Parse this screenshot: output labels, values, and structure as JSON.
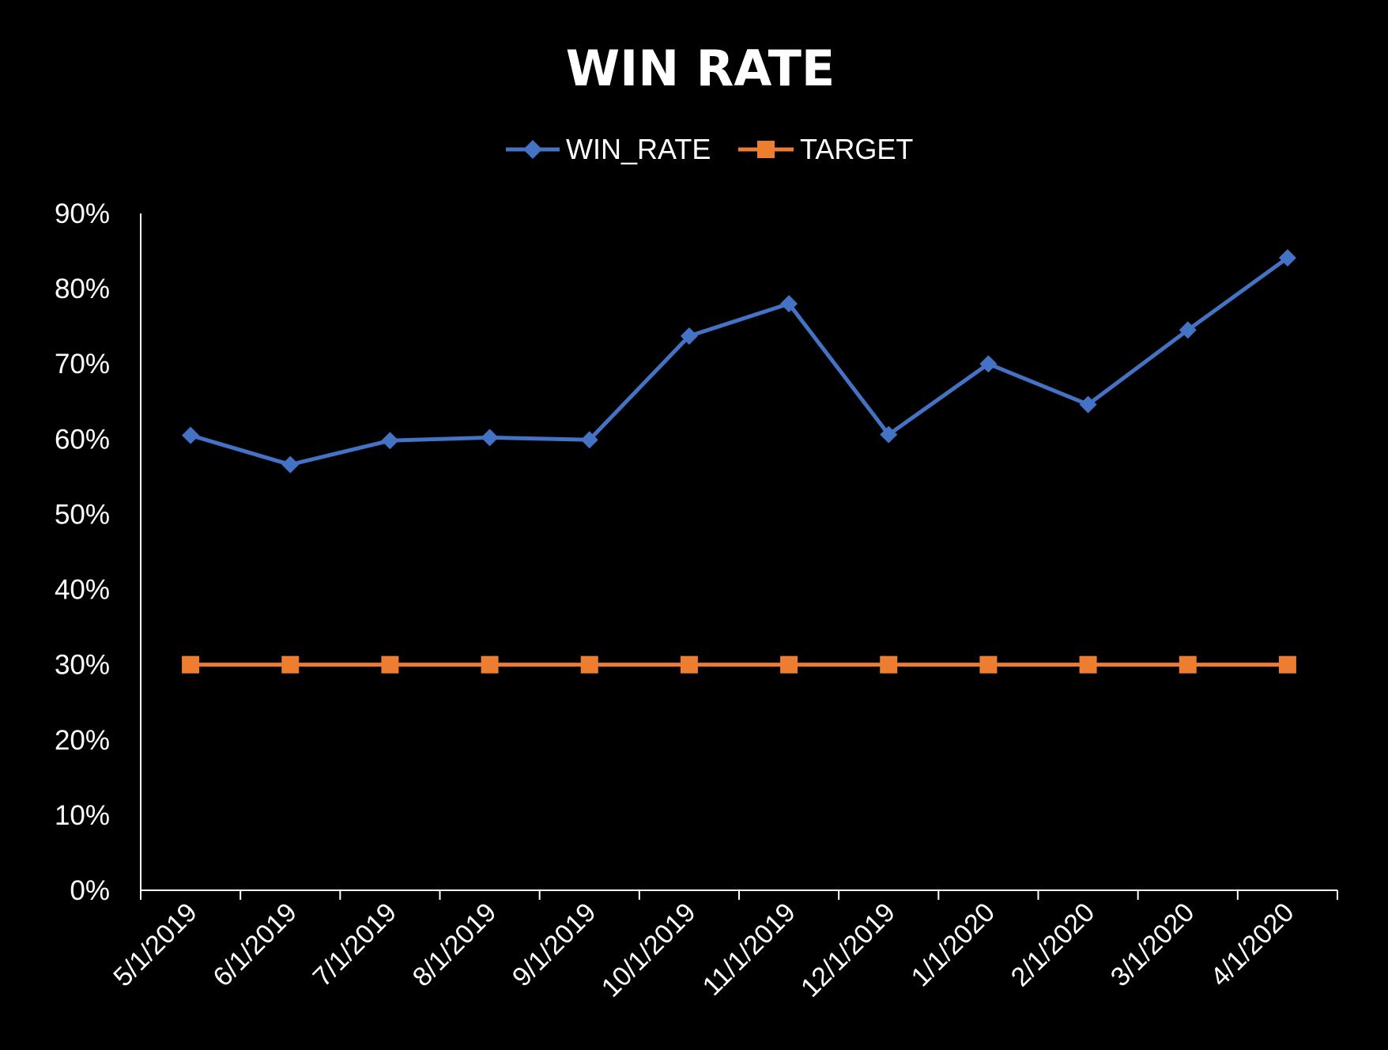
{
  "chart_data": {
    "type": "line",
    "title": "WIN RATE",
    "xlabel": "",
    "ylabel": "",
    "categories": [
      "5/1/2019",
      "6/1/2019",
      "7/1/2019",
      "8/1/2019",
      "9/1/2019",
      "10/1/2019",
      "11/1/2019",
      "12/1/2019",
      "1/1/2020",
      "2/1/2020",
      "3/1/2020",
      "4/1/2020"
    ],
    "series": [
      {
        "name": "WIN_RATE",
        "color": "#4472C4",
        "marker": "diamond",
        "values": [
          0.605,
          0.566,
          0.598,
          0.602,
          0.599,
          0.737,
          0.78,
          0.606,
          0.7,
          0.646,
          0.745,
          0.841
        ]
      },
      {
        "name": "TARGET",
        "color": "#ED7D31",
        "marker": "square",
        "values": [
          0.3,
          0.3,
          0.3,
          0.3,
          0.3,
          0.3,
          0.3,
          0.3,
          0.3,
          0.3,
          0.3,
          0.3
        ]
      }
    ],
    "ylim": [
      0,
      0.9
    ],
    "yticks": [
      0,
      0.1,
      0.2,
      0.3,
      0.4,
      0.5,
      0.6,
      0.7,
      0.8,
      0.9
    ],
    "ytick_labels": [
      "0%",
      "10%",
      "20%",
      "30%",
      "40%",
      "50%",
      "60%",
      "70%",
      "80%",
      "90%"
    ],
    "grid": false,
    "legend_position": "top-center",
    "background": "#000000",
    "axis_color": "#ffffff"
  }
}
